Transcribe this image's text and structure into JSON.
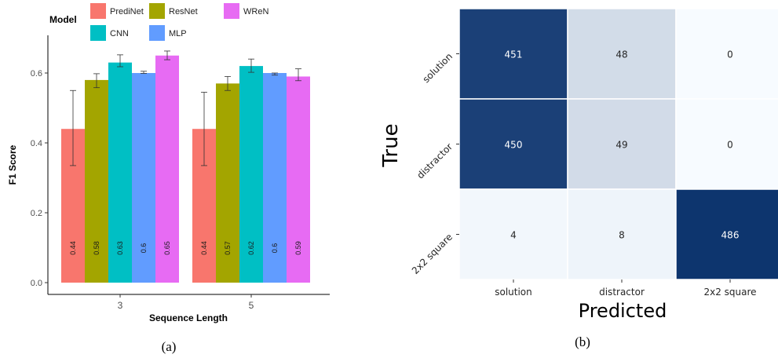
{
  "chart_data": [
    {
      "type": "bar",
      "panel_label": "(a)",
      "xlabel": "Sequence Length",
      "ylabel": "F1 Score",
      "categories": [
        "3",
        "5"
      ],
      "ylim": [
        0,
        0.7
      ],
      "yticks": [
        "0.0",
        "0.2",
        "0.4",
        "0.6"
      ],
      "legend_title": "Model",
      "legend_position": "top",
      "series": [
        {
          "name": "PrediNet",
          "color": "#F8766D",
          "values": [
            0.44,
            0.44
          ],
          "labels": [
            "0.44",
            "0.44"
          ],
          "err_low": [
            0.335,
            0.335
          ],
          "err_high": [
            0.55,
            0.545
          ]
        },
        {
          "name": "ResNet",
          "color": "#A3A500",
          "values": [
            0.58,
            0.57
          ],
          "labels": [
            "0.58",
            "0.57"
          ],
          "err_low": [
            0.558,
            0.55
          ],
          "err_high": [
            0.598,
            0.59
          ]
        },
        {
          "name": "CNN",
          "color": "#00BFC4",
          "values": [
            0.63,
            0.62
          ],
          "labels": [
            "0.63",
            "0.62"
          ],
          "err_low": [
            0.618,
            0.602
          ],
          "err_high": [
            0.652,
            0.64
          ]
        },
        {
          "name": "MLP",
          "color": "#619CFF",
          "values": [
            0.6,
            0.6
          ],
          "labels": [
            "0.6",
            "0.6"
          ],
          "err_low": [
            0.599,
            0.594
          ],
          "err_high": [
            0.605,
            0.6
          ]
        },
        {
          "name": "WReN",
          "color": "#E76BF3",
          "values": [
            0.65,
            0.59
          ],
          "labels": [
            "0.65",
            "0.59"
          ],
          "err_low": [
            0.638,
            0.578
          ],
          "err_high": [
            0.663,
            0.612
          ]
        }
      ],
      "legend_order": [
        "PrediNet",
        "ResNet",
        "WReN",
        "CNN",
        "MLP"
      ]
    },
    {
      "type": "heatmap",
      "panel_label": "(b)",
      "xlabel": "Predicted",
      "ylabel": "True",
      "x_categories": [
        "solution",
        "distractor",
        "2x2 square"
      ],
      "y_categories": [
        "solution",
        "distractor",
        "2x2 square"
      ],
      "values": [
        [
          451,
          48,
          0
        ],
        [
          450,
          49,
          0
        ],
        [
          4,
          8,
          486
        ]
      ],
      "colormap": "Blues",
      "vmax": 500
    }
  ]
}
